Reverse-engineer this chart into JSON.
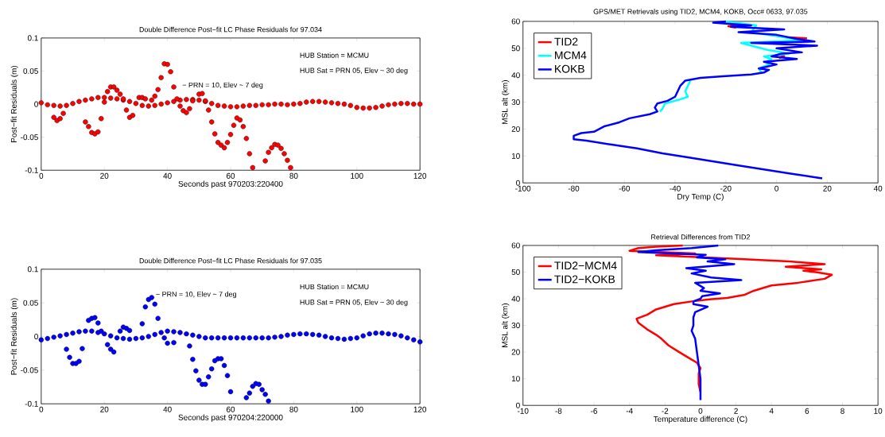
{
  "chart_data": [
    {
      "type": "scatter",
      "title": "Double Difference Post−fit LC Phase Residuals for 97.034",
      "xlabel": "Seconds past 970203:220400",
      "ylabel": "Post−fit Residuals (m)",
      "xlim": [
        0,
        120
      ],
      "ylim": [
        -0.1,
        0.1
      ],
      "xticks": [
        0,
        20,
        40,
        60,
        80,
        100,
        120
      ],
      "yticks": [
        -0.1,
        -0.05,
        0,
        0.05,
        0.1
      ],
      "marker": "circle",
      "legend": false,
      "annotations": [
        "HUB Station = MCMU",
        "HUB Sat = PRN 05, Elev ~ 30 deg",
        "− PRN = 10, Elev ~ 7 deg"
      ],
      "series": [
        {
          "color": "#ff0000",
          "x": [
            0,
            2,
            4,
            6,
            8,
            10,
            12,
            14,
            16,
            18,
            20,
            22,
            24,
            26,
            28,
            30,
            32,
            34,
            36,
            38,
            40,
            42,
            44,
            46,
            48,
            50,
            52,
            54,
            56,
            58,
            60,
            62,
            64,
            66,
            68,
            70,
            72,
            74,
            76,
            78,
            80,
            82,
            84,
            86,
            88,
            90,
            92,
            94,
            96,
            98,
            100,
            102,
            104,
            106,
            108,
            110,
            112,
            114,
            116,
            118,
            120
          ],
          "values": [
            0.002,
            -0.001,
            -0.002,
            -0.003,
            -0.002,
            0.001,
            0.004,
            0.006,
            0.008,
            0.01,
            0.01,
            0.009,
            0.008,
            0.006,
            0.004,
            0.001,
            -0.002,
            -0.003,
            -0.002,
            0,
            0.002,
            0.004,
            0.006,
            0.007,
            0.007,
            0.006,
            0.004,
            0.001,
            -0.002,
            -0.003,
            -0.004,
            -0.004,
            -0.003,
            -0.002,
            -0.002,
            -0.001,
            -0.001,
            0,
            0,
            -0.001,
            0,
            0.001,
            0.003,
            0.004,
            0.004,
            0.003,
            0.002,
            0.001,
            0,
            -0.002,
            -0.005,
            -0.006,
            -0.006,
            -0.005,
            -0.003,
            -0.001,
            0,
            0.001,
            0.001,
            0,
            0
          ]
        },
        {
          "color": "#ff0000",
          "x": [
            4,
            5,
            6,
            7,
            14,
            15,
            16,
            17,
            18,
            19,
            20,
            21,
            22,
            23,
            24,
            25,
            26,
            27,
            28,
            29,
            31,
            32,
            33,
            35,
            36,
            37,
            38,
            39,
            40,
            41,
            42,
            43,
            44,
            45,
            46,
            47,
            48,
            50,
            51,
            52,
            53,
            54,
            55,
            56,
            57,
            58,
            59,
            60,
            61,
            62,
            63,
            64,
            65,
            66,
            67,
            71,
            72,
            73,
            74,
            75,
            76,
            77,
            78,
            79
          ],
          "values": [
            -0.02,
            -0.025,
            -0.022,
            -0.014,
            -0.027,
            -0.034,
            -0.043,
            -0.045,
            -0.042,
            -0.022,
            0.003,
            0.019,
            0.026,
            0.026,
            0.021,
            0.015,
            0.008,
            -0.009,
            -0.02,
            -0.017,
            0.01,
            0.01,
            0.008,
            0.006,
            0.012,
            0.022,
            0.04,
            0.061,
            0.06,
            0.049,
            0.026,
            0.008,
            -0.003,
            -0.01,
            -0.013,
            -0.007,
            0.005,
            0.015,
            0.016,
            0.005,
            -0.009,
            -0.027,
            -0.045,
            -0.058,
            -0.062,
            -0.066,
            -0.058,
            -0.046,
            -0.032,
            -0.021,
            -0.024,
            -0.034,
            -0.052,
            -0.075,
            -0.096,
            -0.086,
            -0.073,
            -0.066,
            -0.061,
            -0.062,
            -0.067,
            -0.075,
            -0.085,
            -0.096
          ]
        }
      ]
    },
    {
      "type": "line",
      "title": "GPS/MET Retrievals using TID2, MCM4, KOKB, Occ# 0633, 97.035",
      "xlabel": "Dry Temp (C)",
      "ylabel": "MSL alt (km)",
      "xlim": [
        -100,
        40
      ],
      "ylim": [
        0,
        60
      ],
      "xticks": [
        -100,
        -80,
        -60,
        -40,
        -20,
        0,
        20,
        40
      ],
      "yticks": [
        0,
        10,
        20,
        30,
        40,
        50,
        60
      ],
      "legend": "top left",
      "series": [
        {
          "name": "TID2",
          "color": "#ff0000",
          "x": [
            1,
            3,
            1,
            null,
            12,
            5,
            null,
            null,
            -16,
            -19,
            -16
          ],
          "values": [
            46.4,
            47.1,
            47.7,
            null,
            53.7,
            54.1,
            null,
            null,
            57.7,
            58.2,
            58.7
          ]
        },
        {
          "name": "MCM4",
          "color": "#00ffff",
          "x": [
            null,
            null,
            null,
            null,
            null,
            null,
            null,
            null,
            null,
            null,
            null,
            null,
            null,
            null,
            null,
            null,
            null,
            null,
            -46,
            -45,
            -44,
            -38,
            -35,
            -36,
            -35,
            -34,
            null,
            null,
            null,
            -6,
            -7,
            -3,
            -4,
            -2,
            -5,
            5,
            -4,
            -14,
            10,
            -10,
            -8,
            -20
          ],
          "values": [
            null,
            null,
            null,
            null,
            null,
            null,
            null,
            null,
            null,
            null,
            null,
            null,
            null,
            null,
            null,
            null,
            null,
            null,
            26.5,
            27.5,
            29.5,
            31,
            32,
            34,
            36,
            38,
            null,
            null,
            null,
            41,
            42.5,
            44,
            45,
            46,
            47,
            48,
            49.5,
            52,
            53,
            56,
            58.5,
            60
          ]
        },
        {
          "name": "KOKB",
          "color": "#0000ff",
          "x": [
            18,
            5,
            -5,
            -15,
            -35,
            -45,
            -55,
            -65,
            -75,
            -80,
            -80,
            -77,
            -72,
            -68,
            -62,
            -58,
            -50,
            -47,
            -48,
            -47,
            -43,
            -40,
            -39,
            -38,
            -36,
            -30,
            -20,
            -10,
            -5,
            -3,
            -7,
            0,
            -5,
            8,
            -2,
            2,
            10,
            0,
            16,
            -10,
            15,
            8,
            0,
            -15,
            3,
            -18,
            -10,
            -25,
            -20
          ],
          "values": [
            1.7,
            3.5,
            5,
            6.5,
            9.5,
            11,
            12.8,
            14.2,
            15.7,
            16.2,
            17.5,
            18.5,
            19,
            21,
            22.5,
            24,
            25.5,
            26.5,
            28,
            29.5,
            30.5,
            32,
            34,
            36,
            38,
            39,
            39.7,
            40.3,
            41,
            42,
            42.5,
            44,
            45,
            46,
            47,
            48,
            48.5,
            50,
            51,
            52,
            52.5,
            53.5,
            55,
            56,
            57,
            58,
            58.5,
            59.5,
            60
          ]
        }
      ]
    },
    {
      "type": "scatter",
      "title": "Double Difference Post−fit LC Phase Residuals for 97.035",
      "xlabel": "Seconds past 970204:220000",
      "ylabel": "Post−fit Residuals (m)",
      "xlim": [
        0,
        120
      ],
      "ylim": [
        -0.1,
        0.1
      ],
      "xticks": [
        0,
        20,
        40,
        60,
        80,
        100,
        120
      ],
      "yticks": [
        -0.1,
        -0.05,
        0,
        0.05,
        0.1
      ],
      "marker": "circle",
      "legend": false,
      "annotations": [
        "HUB Station = MCMU",
        "HUB Sat = PRN 05, Elev ~ 30 deg",
        "− PRN = 10, Elev ~ 7 deg"
      ],
      "series": [
        {
          "color": "#0000ff",
          "x": [
            0,
            2,
            4,
            6,
            8,
            10,
            12,
            14,
            16,
            18,
            20,
            22,
            24,
            26,
            28,
            30,
            32,
            34,
            36,
            38,
            40,
            42,
            44,
            46,
            48,
            50,
            52,
            54,
            56,
            58,
            60,
            62,
            64,
            66,
            68,
            70,
            72,
            74,
            76,
            78,
            80,
            82,
            84,
            86,
            88,
            90,
            92,
            94,
            96,
            98,
            100,
            102,
            104,
            106,
            108,
            110,
            112,
            114,
            116,
            118,
            120
          ],
          "values": [
            -0.005,
            -0.003,
            -0.001,
            0.001,
            0.003,
            0.005,
            0.007,
            0.008,
            0.008,
            0.006,
            0.004,
            0.001,
            -0.002,
            -0.003,
            -0.004,
            -0.003,
            -0.002,
            0,
            0.003,
            0.006,
            0.008,
            0.007,
            0.006,
            0.004,
            0.002,
            0,
            -0.002,
            -0.002,
            -0.002,
            -0.002,
            -0.002,
            -0.002,
            -0.002,
            -0.002,
            -0.002,
            -0.002,
            -0.002,
            -0.001,
            0,
            0.002,
            0.003,
            0.004,
            0.004,
            0.003,
            0.002,
            0,
            -0.002,
            -0.003,
            -0.004,
            -0.003,
            -0.002,
            0.001,
            0.004,
            0.005,
            0.005,
            0.004,
            0.003,
            0.001,
            -0.002,
            -0.005,
            -0.008
          ]
        },
        {
          "color": "#0000ff",
          "x": [
            8,
            9,
            10,
            11,
            12,
            13,
            15,
            16,
            17,
            18,
            19,
            21,
            22,
            23,
            25,
            26,
            27,
            28,
            32,
            33,
            34,
            35,
            36,
            37,
            39,
            40,
            42,
            47,
            48,
            49,
            50,
            51,
            52,
            53,
            54,
            55,
            56,
            57,
            58,
            59,
            60,
            65,
            66,
            67,
            68,
            69,
            70,
            71,
            72
          ],
          "values": [
            -0.019,
            -0.031,
            -0.04,
            -0.04,
            -0.037,
            -0.018,
            0.024,
            0.027,
            0.028,
            0.02,
            0.008,
            -0.012,
            -0.019,
            -0.023,
            0.008,
            0.014,
            0.012,
            0.009,
            0.019,
            0.044,
            0.055,
            0.058,
            0.048,
            0.027,
            -0.002,
            -0.01,
            -0.009,
            -0.014,
            -0.034,
            -0.051,
            -0.065,
            -0.071,
            -0.071,
            -0.06,
            -0.048,
            -0.036,
            -0.033,
            -0.033,
            -0.043,
            -0.058,
            -0.082,
            -0.091,
            -0.084,
            -0.074,
            -0.07,
            -0.071,
            -0.079,
            -0.086,
            -0.096
          ]
        }
      ]
    },
    {
      "type": "line",
      "title": "Retrieval Differences from TID2",
      "xlabel": "Temperature difference (C)",
      "ylabel": "MSL alt (km)",
      "xlim": [
        -10,
        10
      ],
      "ylim": [
        0,
        60
      ],
      "xticks": [
        -10,
        -8,
        -6,
        -4,
        -2,
        0,
        2,
        4,
        6,
        8,
        10
      ],
      "yticks": [
        0,
        10,
        20,
        30,
        40,
        50,
        60
      ],
      "legend": "top left",
      "series": [
        {
          "name": "TID2−MCM4",
          "color": "#ff0000",
          "x": [
            0,
            -0.1,
            -0.1,
            0,
            -0.2,
            -0.7,
            -1.2,
            -1.8,
            -2.2,
            -2.5,
            -3,
            -3.5,
            -3.6,
            -3,
            -2.5,
            -1.5,
            -0.5,
            0.5,
            1.5,
            2.5,
            3,
            4,
            5.5,
            7,
            7.4,
            6.5,
            5.8,
            6.8,
            4.8,
            7,
            5,
            2,
            -0.5,
            -2.5,
            -0.3,
            -4,
            -3.5,
            -2.5,
            -1
          ],
          "values": [
            5,
            8,
            12,
            14,
            16,
            18,
            20,
            22.5,
            25,
            26.5,
            28.5,
            31,
            32.5,
            34,
            36,
            38,
            39,
            39.8,
            40.3,
            41.5,
            43,
            45,
            46,
            47.5,
            49,
            50,
            50.5,
            51,
            52,
            53,
            54,
            55,
            55.7,
            56.3,
            57,
            58,
            59,
            59.5,
            60
          ]
        },
        {
          "name": "TID2−KOKB",
          "color": "#0000ff",
          "x": [
            0,
            0,
            -0.1,
            -0.2,
            -0.3,
            -0.5,
            -0.4,
            -0.4,
            -0.3,
            0.4,
            -0.4,
            -0.4,
            0,
            0.1,
            1.1,
            0,
            0.2,
            -0.3,
            2.3,
            0.6,
            -0.5,
            0.3,
            -0.8,
            1.9,
            0.4,
            1.4,
            -0.2,
            0.3,
            -3.5,
            -2.5,
            -0.5,
            1
          ],
          "values": [
            2,
            10,
            15,
            20,
            25,
            28,
            30,
            33,
            35,
            37,
            38,
            39,
            40,
            41,
            42,
            43,
            44,
            46,
            47,
            48,
            49.5,
            50.5,
            51.5,
            53,
            54,
            54.8,
            55.5,
            56.5,
            57.5,
            58.2,
            59,
            60
          ]
        }
      ]
    }
  ]
}
